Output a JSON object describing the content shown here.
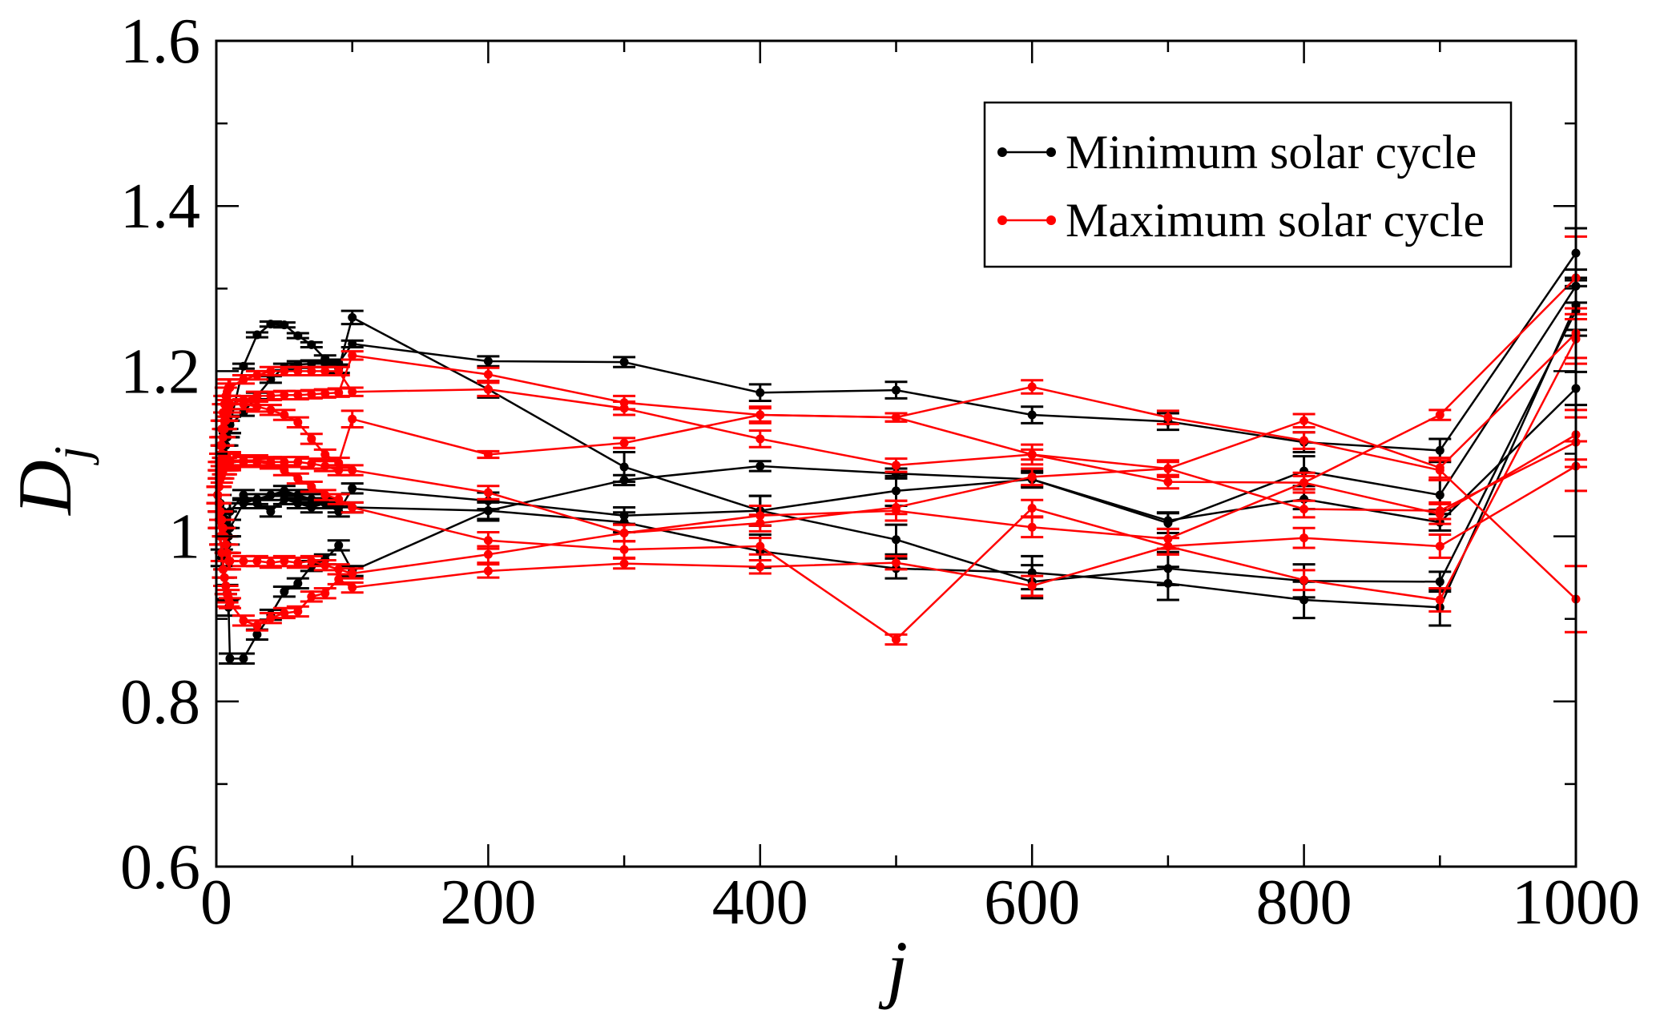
{
  "chart_data": {
    "type": "line",
    "title": "",
    "xlabel": "j",
    "ylabel": "D",
    "ylabel_subscript": "j",
    "xlim": [
      0,
      1000
    ],
    "ylim": [
      0.6,
      1.6
    ],
    "x_major_ticks": [
      0,
      200,
      400,
      600,
      800,
      1000
    ],
    "x_tick_labels": [
      "0",
      "200",
      "400",
      "600",
      "800",
      "1000"
    ],
    "x_minor_ticks": [
      100,
      300,
      500,
      700,
      900
    ],
    "y_major_ticks": [
      0.6,
      0.8,
      1.0,
      1.2,
      1.4,
      1.6
    ],
    "y_tick_labels": [
      "0.6",
      "0.8",
      "1",
      "1.2",
      "1.4",
      "1.6"
    ],
    "y_minor_ticks": [
      0.7,
      0.9,
      1.1,
      1.3,
      1.5
    ],
    "grid": false,
    "legend": {
      "placement": "top-right",
      "entries": [
        {
          "label": "Minimum solar cycle",
          "color": "#000000"
        },
        {
          "label": "Maximum solar cycle",
          "color": "#ff0000"
        }
      ]
    },
    "x": [
      1,
      2,
      3,
      4,
      5,
      6,
      7,
      8,
      9,
      10,
      20,
      30,
      40,
      50,
      60,
      70,
      80,
      90,
      100,
      200,
      300,
      400,
      500,
      600,
      700,
      800,
      900,
      1000
    ],
    "series": [
      {
        "name": "Minimum solar cycle",
        "group": "min",
        "color": "#000000",
        "values": [
          1.05,
          1.07,
          1.09,
          1.1,
          1.11,
          1.12,
          1.12,
          1.13,
          1.13,
          1.135,
          1.206,
          1.244,
          1.257,
          1.256,
          1.243,
          1.232,
          1.215,
          1.203,
          1.265,
          1.178,
          1.084,
          1.031,
          0.996,
          0.945,
          0.961,
          0.946,
          0.945,
          1.273
        ],
        "errors": [
          0.01,
          0.01,
          0.01,
          0.01,
          0.01,
          0.01,
          0.01,
          0.01,
          0.01,
          0.01,
          0.003,
          0.003,
          0.003,
          0.003,
          0.003,
          0.003,
          0.004,
          0.005,
          0.008,
          0.01,
          0.018,
          0.018,
          0.018,
          0.02,
          0.02,
          0.02,
          0.012,
          0.03
        ]
      },
      {
        "name": "Minimum solar cycle",
        "group": "min",
        "color": "#000000",
        "values": [
          1.05,
          1.06,
          1.07,
          1.08,
          1.09,
          1.1,
          1.11,
          1.12,
          1.13,
          1.135,
          1.15,
          1.17,
          1.19,
          1.205,
          1.208,
          1.209,
          1.209,
          1.21,
          1.233,
          1.212,
          1.211,
          1.174,
          1.177,
          1.147,
          1.139,
          1.114,
          1.104,
          1.343
        ],
        "errors": [
          0.01,
          0.01,
          0.01,
          0.01,
          0.01,
          0.01,
          0.01,
          0.01,
          0.01,
          0.01,
          0.004,
          0.004,
          0.004,
          0.004,
          0.004,
          0.004,
          0.004,
          0.004,
          0.004,
          0.006,
          0.006,
          0.01,
          0.01,
          0.01,
          0.01,
          0.012,
          0.014,
          0.03
        ]
      },
      {
        "name": "Minimum solar cycle",
        "group": "min",
        "color": "#000000",
        "values": [
          1.05,
          1.04,
          1.03,
          1.02,
          1.01,
          1.0,
          0.99,
          0.99,
          1.0,
          1.03,
          1.05,
          1.04,
          1.03,
          1.045,
          1.04,
          1.035,
          1.04,
          1.03,
          1.058,
          1.043,
          1.025,
          1.031,
          1.055,
          1.069,
          1.016,
          1.079,
          1.05,
          1.303
        ],
        "errors": [
          0.01,
          0.01,
          0.01,
          0.01,
          0.01,
          0.01,
          0.01,
          0.01,
          0.01,
          0.01,
          0.006,
          0.006,
          0.006,
          0.006,
          0.006,
          0.006,
          0.006,
          0.006,
          0.006,
          0.01,
          0.01,
          0.018,
          0.018,
          0.01,
          0.012,
          0.018,
          0.018,
          0.02
        ]
      },
      {
        "name": "Minimum solar cycle",
        "group": "min",
        "color": "#000000",
        "values": [
          1.05,
          1.04,
          1.04,
          1.03,
          1.03,
          1.02,
          1.02,
          1.01,
          1.01,
          1.01,
          1.04,
          1.045,
          1.05,
          1.055,
          1.05,
          1.045,
          1.04,
          1.035,
          1.035,
          1.031,
          1.068,
          1.085,
          1.076,
          1.069,
          1.019,
          1.045,
          1.017,
          1.179
        ],
        "errors": [
          0.01,
          0.01,
          0.01,
          0.01,
          0.01,
          0.01,
          0.01,
          0.01,
          0.01,
          0.01,
          0.006,
          0.006,
          0.006,
          0.006,
          0.006,
          0.006,
          0.006,
          0.006,
          0.006,
          0.012,
          0.006,
          0.006,
          0.006,
          0.008,
          0.01,
          0.012,
          0.01,
          0.02
        ]
      },
      {
        "name": "Minimum solar cycle",
        "group": "min",
        "color": "#000000",
        "values": [
          1.05,
          1.02,
          1.0,
          0.974,
          0.96,
          0.95,
          0.94,
          0.931,
          0.914,
          0.852,
          0.852,
          0.881,
          0.905,
          0.933,
          0.943,
          0.964,
          0.972,
          0.989,
          0.958,
          1.031,
          1.017,
          0.982,
          0.961,
          0.956,
          0.943,
          0.923,
          0.914,
          1.28
        ],
        "errors": [
          0.01,
          0.01,
          0.01,
          0.01,
          0.01,
          0.01,
          0.01,
          0.01,
          0.01,
          0.006,
          0.006,
          0.006,
          0.006,
          0.006,
          0.006,
          0.006,
          0.006,
          0.006,
          0.006,
          0.01,
          0.012,
          0.02,
          0.012,
          0.02,
          0.02,
          0.022,
          0.022,
          0.03
        ]
      },
      {
        "name": "Maximum solar cycle",
        "group": "max",
        "color": "#ff0000",
        "values": [
          1.05,
          1.07,
          1.09,
          1.11,
          1.13,
          1.14,
          1.15,
          1.155,
          1.16,
          1.16,
          1.165,
          1.17,
          1.17,
          1.171,
          1.171,
          1.172,
          1.173,
          1.174,
          1.219,
          1.196,
          1.162,
          1.147,
          1.144,
          1.181,
          1.144,
          1.116,
          1.08,
          0.924
        ],
        "errors": [
          0.01,
          0.01,
          0.01,
          0.01,
          0.01,
          0.01,
          0.01,
          0.01,
          0.01,
          0.01,
          0.005,
          0.005,
          0.005,
          0.005,
          0.005,
          0.005,
          0.005,
          0.005,
          0.005,
          0.008,
          0.008,
          0.01,
          0.005,
          0.008,
          0.008,
          0.01,
          0.012,
          0.04
        ]
      },
      {
        "name": "Maximum solar cycle",
        "group": "max",
        "color": "#ff0000",
        "values": [
          1.05,
          1.08,
          1.11,
          1.13,
          1.15,
          1.16,
          1.17,
          1.175,
          1.18,
          1.18,
          1.19,
          1.195,
          1.2,
          1.2,
          1.2,
          1.2,
          1.2,
          1.2,
          1.175,
          1.178,
          1.155,
          1.118,
          1.086,
          1.099,
          1.082,
          1.14,
          1.083,
          1.246
        ],
        "errors": [
          0.01,
          0.01,
          0.01,
          0.01,
          0.01,
          0.01,
          0.01,
          0.01,
          0.01,
          0.01,
          0.005,
          0.005,
          0.005,
          0.005,
          0.005,
          0.005,
          0.005,
          0.005,
          0.005,
          0.008,
          0.008,
          0.01,
          0.008,
          0.012,
          0.01,
          0.008,
          0.012,
          0.03
        ]
      },
      {
        "name": "Maximum solar cycle",
        "group": "max",
        "color": "#ff0000",
        "values": [
          1.05,
          1.07,
          1.09,
          1.1,
          1.12,
          1.13,
          1.14,
          1.15,
          1.155,
          1.16,
          1.16,
          1.157,
          1.153,
          1.147,
          1.138,
          1.118,
          1.099,
          1.089,
          1.142,
          1.099,
          1.113,
          1.147,
          1.144,
          1.099,
          1.066,
          1.065,
          1.147,
          1.313
        ],
        "errors": [
          0.01,
          0.01,
          0.01,
          0.01,
          0.01,
          0.01,
          0.01,
          0.01,
          0.01,
          0.01,
          0.006,
          0.006,
          0.006,
          0.006,
          0.006,
          0.006,
          0.006,
          0.006,
          0.01,
          0.004,
          0.006,
          0.008,
          0.005,
          0.006,
          0.008,
          0.008,
          0.006,
          0.05
        ]
      },
      {
        "name": "Maximum solar cycle",
        "group": "max",
        "color": "#ff0000",
        "values": [
          1.05,
          1.06,
          1.07,
          1.08,
          1.085,
          1.09,
          1.09,
          1.09,
          1.092,
          1.092,
          1.092,
          1.092,
          1.09,
          1.09,
          1.09,
          1.088,
          1.085,
          1.08,
          1.08,
          1.053,
          1.004,
          1.016,
          1.035,
          1.072,
          1.082,
          1.033,
          1.031,
          1.114
        ],
        "errors": [
          0.01,
          0.01,
          0.01,
          0.01,
          0.01,
          0.01,
          0.01,
          0.01,
          0.01,
          0.01,
          0.006,
          0.006,
          0.006,
          0.006,
          0.006,
          0.006,
          0.006,
          0.006,
          0.006,
          0.008,
          0.01,
          0.01,
          0.008,
          0.01,
          0.008,
          0.01,
          0.01,
          0.03
        ]
      },
      {
        "name": "Maximum solar cycle",
        "group": "max",
        "color": "#ff0000",
        "values": [
          1.05,
          1.04,
          1.03,
          1.02,
          1.01,
          1.0,
          0.99,
          0.98,
          0.97,
          0.97,
          0.97,
          0.97,
          0.968,
          0.97,
          0.968,
          0.97,
          0.965,
          0.96,
          0.955,
          0.978,
          1.004,
          1.025,
          1.031,
          1.011,
          0.997,
          1.065,
          1.027,
          1.123
        ],
        "errors": [
          0.01,
          0.01,
          0.01,
          0.01,
          0.01,
          0.01,
          0.01,
          0.01,
          0.01,
          0.01,
          0.006,
          0.006,
          0.006,
          0.006,
          0.006,
          0.006,
          0.006,
          0.006,
          0.006,
          0.01,
          0.01,
          0.012,
          0.012,
          0.012,
          0.012,
          0.012,
          0.012,
          0.03
        ]
      },
      {
        "name": "Maximum solar cycle",
        "group": "max",
        "color": "#ff0000",
        "values": [
          1.05,
          1.02,
          1.0,
          0.98,
          0.96,
          0.95,
          0.94,
          0.93,
          0.925,
          0.919,
          0.898,
          0.892,
          0.901,
          0.907,
          0.909,
          0.927,
          0.931,
          0.948,
          0.938,
          0.958,
          0.967,
          0.963,
          0.968,
          0.94,
          0.988,
          0.947,
          0.923,
          1.239
        ],
        "errors": [
          0.01,
          0.01,
          0.01,
          0.01,
          0.01,
          0.01,
          0.01,
          0.01,
          0.01,
          0.006,
          0.006,
          0.006,
          0.006,
          0.006,
          0.006,
          0.006,
          0.006,
          0.006,
          0.006,
          0.008,
          0.006,
          0.008,
          0.008,
          0.012,
          0.01,
          0.012,
          0.014,
          0.03
        ]
      },
      {
        "name": "Maximum solar cycle",
        "group": "max",
        "color": "#ff0000",
        "values": [
          1.05,
          1.06,
          1.07,
          1.075,
          1.08,
          1.085,
          1.085,
          1.09,
          1.09,
          1.09,
          1.09,
          1.09,
          1.088,
          1.08,
          1.07,
          1.06,
          1.05,
          1.045,
          1.035,
          0.995,
          0.984,
          0.988,
          0.875,
          1.034,
          0.988,
          0.998,
          0.988,
          1.085
        ],
        "errors": [
          0.01,
          0.01,
          0.01,
          0.01,
          0.01,
          0.01,
          0.01,
          0.01,
          0.01,
          0.01,
          0.006,
          0.006,
          0.006,
          0.006,
          0.006,
          0.006,
          0.006,
          0.006,
          0.006,
          0.01,
          0.01,
          0.01,
          0.006,
          0.01,
          0.01,
          0.012,
          0.014,
          0.03
        ]
      }
    ]
  }
}
